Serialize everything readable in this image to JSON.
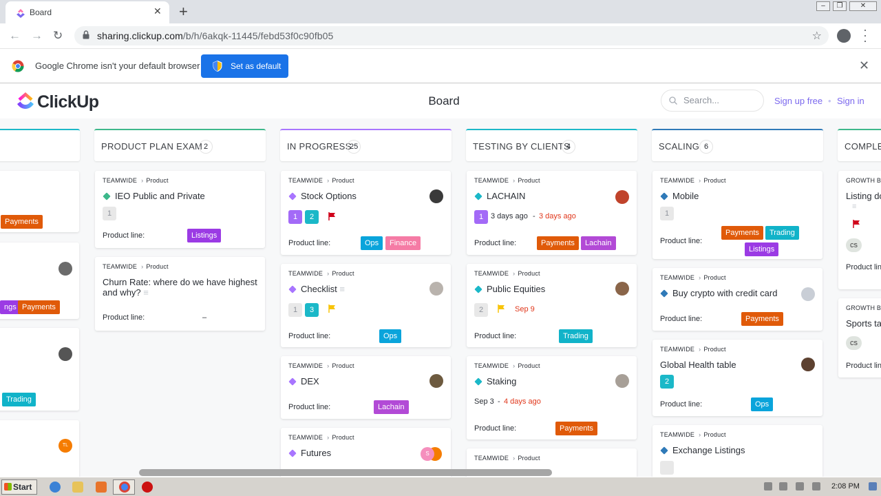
{
  "browser": {
    "tab_title": "Board",
    "url_host": "sharing.clickup.com",
    "url_path": "/b/h/6akqk-11445/febd53f0c90fb05"
  },
  "infobar": {
    "message": "Google Chrome isn't your default browser",
    "button_label": "Set as default"
  },
  "header": {
    "logo_text": "ClickUp",
    "title": "Board",
    "search_placeholder": "Search...",
    "signup_label": "Sign up free",
    "separator": "•",
    "signin_label": "Sign in"
  },
  "board": {
    "columns": [
      {
        "name": "PRODUCT PLAN EXAM",
        "count": "2",
        "color": "#3db88b"
      },
      {
        "name": "IN PROGRESS",
        "count": "25",
        "color": "#a875ff"
      },
      {
        "name": "TESTING BY CLIENTS",
        "count": "4",
        "color": "#1bb8c8"
      },
      {
        "name": "SCALING",
        "count": "6",
        "color": "#2f7ab8"
      },
      {
        "name": "COMPLET",
        "count": "",
        "color": "#3db88b"
      }
    ],
    "partial_left": {
      "tags": [
        "Payments",
        "ngs",
        "Payments",
        "Trading"
      ],
      "avatar_initials": "TL"
    },
    "cards": {
      "c1": {
        "crumb": "TEAMWIDE",
        "sub": "Product",
        "title": "IEO Public and Private",
        "sq1": "1",
        "plabel": "Product line:",
        "tag1": "Listings"
      },
      "c2": {
        "crumb": "TEAMWIDE",
        "sub": "Product",
        "title": "Churn Rate: where do we have highest and why?",
        "plabel": "Product line:",
        "empty": "–"
      },
      "c3": {
        "crumb": "TEAMWIDE",
        "sub": "Product",
        "title": "Stock Options",
        "sq1": "1",
        "sq2": "2",
        "plabel": "Product line:",
        "tag1": "Ops",
        "tag2": "Finance"
      },
      "c4": {
        "crumb": "TEAMWIDE",
        "sub": "Product",
        "title": "Checklist",
        "sq1": "1",
        "sq2": "3",
        "plabel": "Product line:",
        "tag1": "Ops"
      },
      "c5": {
        "crumb": "TEAMWIDE",
        "sub": "Product",
        "title": "DEX",
        "plabel": "Product line:",
        "tag1": "Lachain"
      },
      "c6": {
        "crumb": "TEAMWIDE",
        "sub": "Product",
        "title": "Futures",
        "avatar1": "S"
      },
      "c7": {
        "crumb": "TEAMWIDE",
        "sub": "Product",
        "title": "LACHAIN",
        "sq1": "1",
        "start": "3 days ago",
        "dash": "-",
        "due": "3 days ago",
        "plabel": "Product line:",
        "tag1": "Payments",
        "tag2": "Lachain"
      },
      "c8": {
        "crumb": "TEAMWIDE",
        "sub": "Product",
        "title": "Public Equities",
        "sq1": "2",
        "due": "Sep 9",
        "plabel": "Product line:",
        "tag1": "Trading"
      },
      "c9": {
        "crumb": "TEAMWIDE",
        "sub": "Product",
        "title": "Staking",
        "start": "Sep 3",
        "dash": "-",
        "due": "4 days ago",
        "plabel": "Product line:",
        "tag1": "Payments"
      },
      "c10": {
        "crumb": "TEAMWIDE",
        "sub": "Product"
      },
      "c11": {
        "crumb": "TEAMWIDE",
        "sub": "Product",
        "title": "Mobile",
        "sq1": "1",
        "plabel": "Product line:",
        "tag1": "Payments",
        "tag2": "Trading",
        "tag3": "Listings"
      },
      "c12": {
        "crumb": "TEAMWIDE",
        "sub": "Product",
        "title": "Buy crypto with credit card",
        "plabel": "Product line:",
        "tag1": "Payments"
      },
      "c13": {
        "crumb": "TEAMWIDE",
        "sub": "Product",
        "title": "Global Health table",
        "sq1": "2",
        "plabel": "Product line:",
        "tag1": "Ops"
      },
      "c14": {
        "crumb": "TEAMWIDE",
        "sub": "Product",
        "title": "Exchange Listings"
      },
      "c15": {
        "crumb": "GROWTH B",
        "title": "Listing do",
        "tag1": "cs",
        "plabel": "Product lin"
      },
      "c16": {
        "crumb": "GROWTH B",
        "title": "Sports ta",
        "tag1": "cs",
        "plabel": "Product lin"
      }
    }
  },
  "taskbar": {
    "start_label": "Start",
    "clock": "2:08 PM"
  }
}
